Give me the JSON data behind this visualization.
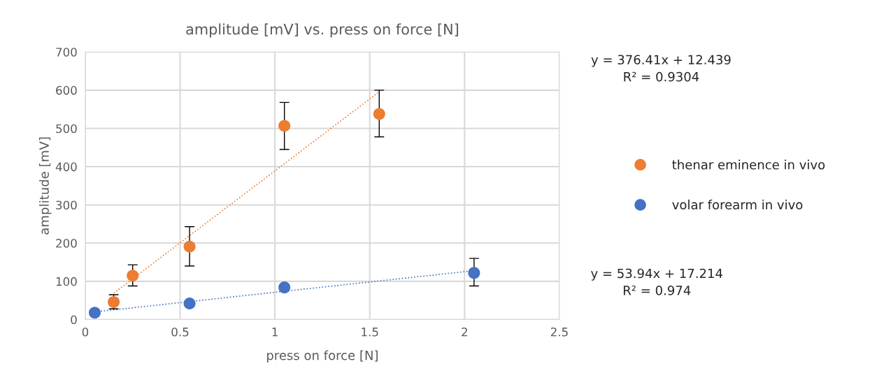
{
  "chart_data": {
    "type": "scatter",
    "title": "amplitude [mV] vs. press on force [N]",
    "xlabel": "press on force [N]",
    "ylabel": "amplitude [mV]",
    "xlim": [
      0,
      2.5
    ],
    "xticks": [
      0,
      0.5,
      1,
      1.5,
      2,
      2.5
    ],
    "ylim": [
      0,
      700
    ],
    "yticks": [
      0,
      100,
      200,
      300,
      400,
      500,
      600,
      700
    ],
    "grid": true,
    "legend": "right",
    "series": [
      {
        "name": "thenar eminence in vivo",
        "marker": "circle",
        "color": "#ed7d31",
        "x": [
          0.15,
          0.25,
          0.55,
          1.05,
          1.55
        ],
        "values": [
          46,
          115,
          191,
          507,
          538
        ],
        "errors": [
          [
            28,
            65
          ],
          [
            88,
            143
          ],
          [
            140,
            243
          ],
          [
            445,
            568
          ],
          [
            478,
            600
          ]
        ]
      },
      {
        "name": "volar forearm in vivo",
        "marker": "circle",
        "color": "#4472c4",
        "x": [
          0.05,
          0.55,
          1.05,
          2.05
        ],
        "values": [
          18,
          42,
          84,
          122
        ],
        "errors": [
          null,
          null,
          null,
          [
            88,
            160
          ]
        ]
      },
      {
        "type": "line",
        "marker": "none",
        "line_style": "dotted",
        "color": "#ed7d31",
        "x": [
          0.15,
          1.55
        ],
        "values": [
          69,
          596
        ]
      },
      {
        "type": "line",
        "marker": "none",
        "line_style": "dotted",
        "color": "#4472c4",
        "x": [
          0.05,
          2.05
        ],
        "values": [
          20,
          128
        ]
      }
    ],
    "annotations": [
      "y = 376.41x + 12.439\nR² = 0.9304",
      "y = 53.94x + 17.214\nR² = 0.974"
    ]
  }
}
